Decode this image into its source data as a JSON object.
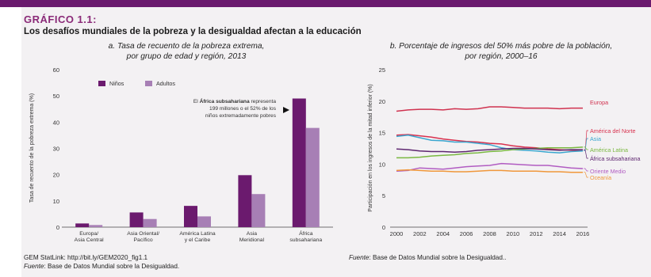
{
  "figure": {
    "label": "GRÁFICO 1.1:",
    "title": "Los desafíos mundiales de la pobreza y la desigualdad afectan a la educación"
  },
  "chart_a": {
    "subtitle_line1": "a. Tasa de recuento de la pobreza extrema,",
    "subtitle_line2": "por grupo de edad y región, 2013",
    "annotation_pre": "El ",
    "annotation_bold": "África subsahariana",
    "annotation_post": " representa",
    "annotation_line2": "199 millones o el 52% de los",
    "annotation_line3": "niños extremadamente pobres",
    "ylabel": "Tasa de recuento de la pobreza extrema (%)"
  },
  "chart_b": {
    "subtitle_line1": "b. Porcentaje de ingresos del 50% más pobre de la población,",
    "subtitle_line2": "por región, 2000–16",
    "ylabel": "Participación en los ingresos de la mitad inferior (%)"
  },
  "footer": {
    "statlink": "GEM StatLink: http://bit.ly/GEM2020_fig1.1",
    "source_a_label": "Fuente",
    "source_a_text": ": Base de Datos Mundial sobre la Desigualdad.",
    "source_b_label": "Fuente",
    "source_b_text": ": Base de Datos Mundial sobre la Desigualdad.."
  },
  "chart_data": [
    {
      "type": "bar",
      "categories": [
        [
          "Europa/",
          "Asia Central"
        ],
        [
          "Asia Oriental/",
          "Pacífico"
        ],
        [
          "América Latina",
          "y el Caribe"
        ],
        [
          "Asia",
          "Meridional"
        ],
        [
          "África",
          "subsahariana"
        ]
      ],
      "series": [
        {
          "name": "Niños",
          "color": "#6b1a6e",
          "values": [
            1.4,
            5.6,
            8.1,
            19.8,
            49.0
          ]
        },
        {
          "name": "Adultos",
          "color": "#a77fb5",
          "values": [
            0.8,
            3.1,
            4.1,
            12.6,
            37.8
          ]
        }
      ],
      "ylabel": "Tasa de recuento de la pobreza extrema (%)",
      "ylim": [
        0,
        60
      ],
      "yticks": [
        0,
        10,
        20,
        30,
        40,
        50,
        60
      ],
      "legend": "top-left",
      "grid": false
    },
    {
      "type": "line",
      "x": [
        2000,
        2001,
        2002,
        2003,
        2004,
        2005,
        2006,
        2007,
        2008,
        2009,
        2010,
        2011,
        2012,
        2013,
        2014,
        2015,
        2016
      ],
      "xticks": [
        2000,
        2002,
        2004,
        2006,
        2008,
        2010,
        2012,
        2014,
        2016
      ],
      "ylabel": "Participación en los ingresos de la mitad inferior (%)",
      "ylim": [
        0,
        25
      ],
      "yticks": [
        0,
        5,
        10,
        15,
        20,
        25
      ],
      "grid": false,
      "series": [
        {
          "name": "Europa",
          "color": "#d0324f",
          "values": [
            18.4,
            18.6,
            18.7,
            18.7,
            18.6,
            18.8,
            18.7,
            18.8,
            19.1,
            19.1,
            19.0,
            18.9,
            18.9,
            18.9,
            18.8,
            18.9,
            18.9
          ]
        },
        {
          "name": "América del Norte",
          "color": "#d8314e",
          "values": [
            14.6,
            14.7,
            14.5,
            14.3,
            14.0,
            13.8,
            13.6,
            13.5,
            13.3,
            13.2,
            12.9,
            12.7,
            12.6,
            12.4,
            12.3,
            12.2,
            12.1
          ]
        },
        {
          "name": "Asia",
          "color": "#3aa6cf",
          "values": [
            14.4,
            14.6,
            14.2,
            13.8,
            13.7,
            13.5,
            13.5,
            13.3,
            13.1,
            12.6,
            12.3,
            12.2,
            12.1,
            11.9,
            11.8,
            12.0,
            12.1
          ]
        },
        {
          "name": "América Latina",
          "color": "#7ab841",
          "values": [
            11.0,
            11.0,
            11.1,
            11.3,
            11.4,
            11.5,
            11.7,
            11.8,
            12.0,
            12.1,
            12.3,
            12.4,
            12.5,
            12.6,
            12.6,
            12.6,
            12.7
          ]
        },
        {
          "name": "África subsahariana",
          "color": "#5e2670",
          "values": [
            12.4,
            12.3,
            12.1,
            12.0,
            12.0,
            11.9,
            12.0,
            12.2,
            12.3,
            12.4,
            12.5,
            12.5,
            12.4,
            12.3,
            12.2,
            12.3,
            12.3
          ]
        },
        {
          "name": "Oriente Medio",
          "color": "#b15cc2",
          "values": [
            8.9,
            9.0,
            9.4,
            9.3,
            9.2,
            9.4,
            9.6,
            9.7,
            9.8,
            10.1,
            10.0,
            9.9,
            9.8,
            9.8,
            9.6,
            9.4,
            9.3
          ]
        },
        {
          "name": "Oceanía",
          "color": "#f0973a",
          "values": [
            9.0,
            9.1,
            9.0,
            8.9,
            8.9,
            8.8,
            8.8,
            8.9,
            9.0,
            9.0,
            8.9,
            8.9,
            8.9,
            8.8,
            8.8,
            8.7,
            8.7
          ]
        }
      ]
    }
  ]
}
